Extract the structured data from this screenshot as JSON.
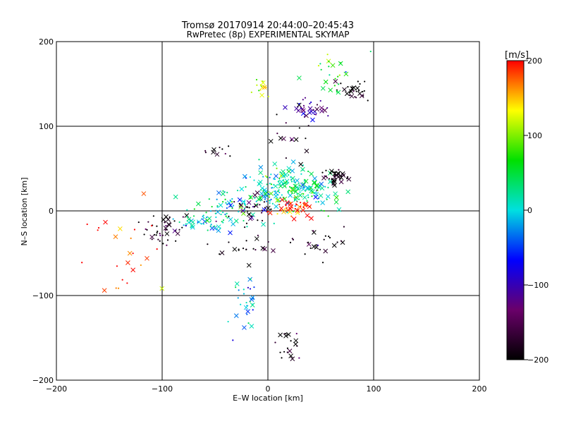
{
  "chart_data": {
    "type": "scatter",
    "title": "Tromsø 20170914 20:44:00–20:45:43",
    "subtitle": "RwPretec (8p) EXPERIMENTAL SKYMAP",
    "xlabel": "E–W location [km]",
    "ylabel": "N–S location [km]",
    "xlim": [
      -200,
      200
    ],
    "ylim": [
      -200,
      200
    ],
    "xticks": [
      "−200",
      "−100",
      "0",
      "100",
      "200"
    ],
    "yticks": [
      "−200",
      "−100",
      "0",
      "100",
      "200"
    ],
    "grid": true,
    "colorbar": {
      "label": "[m/s]",
      "range": [
        -200,
        200
      ],
      "ticks": [
        "−200",
        "−100",
        "0",
        "100",
        "200"
      ],
      "colors": [
        "#000000",
        "#6a006a",
        "#0000ff",
        "#00e0e0",
        "#00e000",
        "#ffff00",
        "#ff0000"
      ]
    },
    "clusters": [
      {
        "cx": -95,
        "cy": -20,
        "sx": 12,
        "sy": 10,
        "n": 45,
        "v": -190
      },
      {
        "cx": -60,
        "cy": -12,
        "sx": 14,
        "sy": 6,
        "n": 55,
        "v": 0
      },
      {
        "cx": -35,
        "cy": 5,
        "sx": 15,
        "sy": 10,
        "n": 45,
        "v": 20
      },
      {
        "cx": -15,
        "cy": 0,
        "sx": 10,
        "sy": 8,
        "n": 40,
        "v": -180
      },
      {
        "cx": 0,
        "cy": 25,
        "sx": 14,
        "sy": 14,
        "n": 90,
        "v": 10
      },
      {
        "cx": 25,
        "cy": 30,
        "sx": 14,
        "sy": 10,
        "n": 90,
        "v": 25
      },
      {
        "cx": 25,
        "cy": 5,
        "sx": 12,
        "sy": 5,
        "n": 45,
        "v": 195
      },
      {
        "cx": 45,
        "cy": 20,
        "sx": 15,
        "sy": 10,
        "n": 40,
        "v": 30
      },
      {
        "cx": 65,
        "cy": 40,
        "sx": 6,
        "sy": 4,
        "n": 45,
        "v": -200
      },
      {
        "cx": 40,
        "cy": 120,
        "sx": 10,
        "sy": 6,
        "n": 35,
        "v": -120
      },
      {
        "cx": 80,
        "cy": 140,
        "sx": 7,
        "sy": 6,
        "n": 30,
        "v": -200
      },
      {
        "cx": 60,
        "cy": 160,
        "sx": 15,
        "sy": 15,
        "n": 25,
        "v": 60
      },
      {
        "cx": -5,
        "cy": 145,
        "sx": 4,
        "sy": 6,
        "n": 15,
        "v": 120
      },
      {
        "cx": 20,
        "cy": -160,
        "sx": 6,
        "sy": 10,
        "n": 20,
        "v": -200
      },
      {
        "cx": -20,
        "cy": -110,
        "sx": 6,
        "sy": 20,
        "n": 30,
        "v": -20
      },
      {
        "cx": 50,
        "cy": -35,
        "sx": 12,
        "sy": 10,
        "n": 25,
        "v": -200
      },
      {
        "cx": -140,
        "cy": -50,
        "sx": 20,
        "sy": 30,
        "n": 25,
        "v": 190
      },
      {
        "cx": -20,
        "cy": -40,
        "sx": 15,
        "sy": 10,
        "n": 20,
        "v": -200
      },
      {
        "cx": 20,
        "cy": 85,
        "sx": 10,
        "sy": 12,
        "n": 15,
        "v": -200
      },
      {
        "cx": -45,
        "cy": 70,
        "sx": 10,
        "sy": 8,
        "n": 10,
        "v": -200
      }
    ]
  }
}
